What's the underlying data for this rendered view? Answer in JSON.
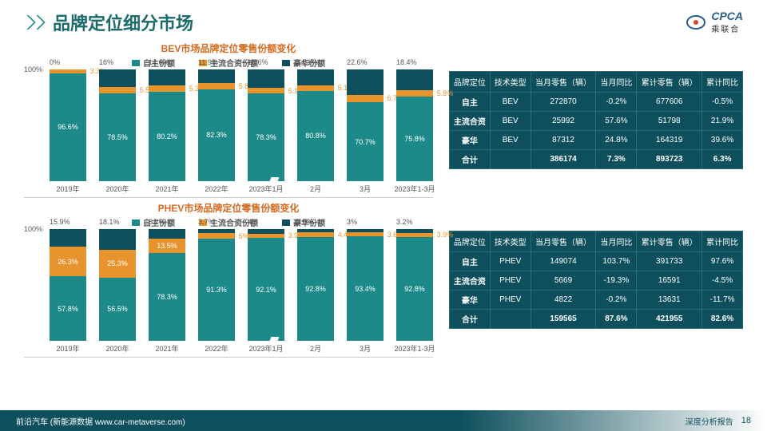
{
  "header": {
    "title": "品牌定位细分市场",
    "logo_main": "CPCA",
    "logo_sub": "乘联合"
  },
  "colors": {
    "teal": "#1d8a8a",
    "orange": "#e8942e",
    "dark": "#0d4f5c",
    "gray": "#999"
  },
  "chart1": {
    "title": "BEV市场品牌定位零售份额变化",
    "legend": [
      "自主份额",
      "主流合资份额",
      "豪华份额"
    ],
    "ylabel": "100%",
    "cats": [
      "2019年",
      "2020年",
      "2021年",
      "2022年",
      "2023年1月",
      "2月",
      "3月",
      "2023年1-3月"
    ],
    "series": {
      "autonomous": [
        96.6,
        78.5,
        80.2,
        82.3,
        78.3,
        80.8,
        70.7,
        75.8
      ],
      "jv": [
        3.3,
        5.5,
        5.3,
        5.8,
        5.1,
        5.1,
        6.7,
        5.8
      ],
      "luxury": [
        0.0,
        16.0,
        14.6,
        11.9,
        16.6,
        14.1,
        22.6,
        18.4
      ]
    },
    "top_label": "0.0%"
  },
  "chart2": {
    "title": "PHEV市场品牌定位零售份额变化",
    "legend": [
      "自主份额",
      "主流合资份额",
      "豪华份额"
    ],
    "ylabel": "100%",
    "cats": [
      "2019年",
      "2020年",
      "2021年",
      "2022年",
      "2023年1月",
      "2月",
      "3月",
      "2023年1-3月"
    ],
    "series": {
      "autonomous": [
        57.8,
        56.5,
        78.3,
        91.3,
        92.1,
        92.8,
        93.4,
        92.8
      ],
      "jv": [
        26.3,
        25.3,
        13.5,
        5.0,
        3.9,
        4.4,
        3.6,
        3.9
      ],
      "luxury": [
        15.9,
        18.1,
        8.2,
        3.7,
        4.0,
        2.9,
        3.0,
        3.2
      ]
    }
  },
  "table1": {
    "headers": [
      "品牌定位",
      "技术类型",
      "当月零售（辆）",
      "当月同比",
      "累计零售（辆）",
      "累计同比"
    ],
    "rows": [
      [
        "自主",
        "BEV",
        "272870",
        "-0.2%",
        "677606",
        "-0.5%"
      ],
      [
        "主流合资",
        "BEV",
        "25992",
        "57.6%",
        "51798",
        "21.9%"
      ],
      [
        "豪华",
        "BEV",
        "87312",
        "24.8%",
        "164319",
        "39.6%"
      ],
      [
        "合计",
        "",
        "386174",
        "7.3%",
        "893723",
        "6.3%"
      ]
    ]
  },
  "table2": {
    "headers": [
      "品牌定位",
      "技术类型",
      "当月零售（辆）",
      "当月同比",
      "累计零售（辆）",
      "累计同比"
    ],
    "rows": [
      [
        "自主",
        "PHEV",
        "149074",
        "103.7%",
        "391733",
        "97.6%"
      ],
      [
        "主流合资",
        "PHEV",
        "5669",
        "-19.3%",
        "16591",
        "-4.5%"
      ],
      [
        "豪华",
        "PHEV",
        "4822",
        "-0.2%",
        "13631",
        "-11.7%"
      ],
      [
        "合计",
        "",
        "159565",
        "87.6%",
        "421955",
        "82.6%"
      ]
    ]
  },
  "footer": {
    "src": "前沿汽车 (新能源数据 www.car-metaverse.com)",
    "report": "深度分析报告",
    "page": "18"
  }
}
